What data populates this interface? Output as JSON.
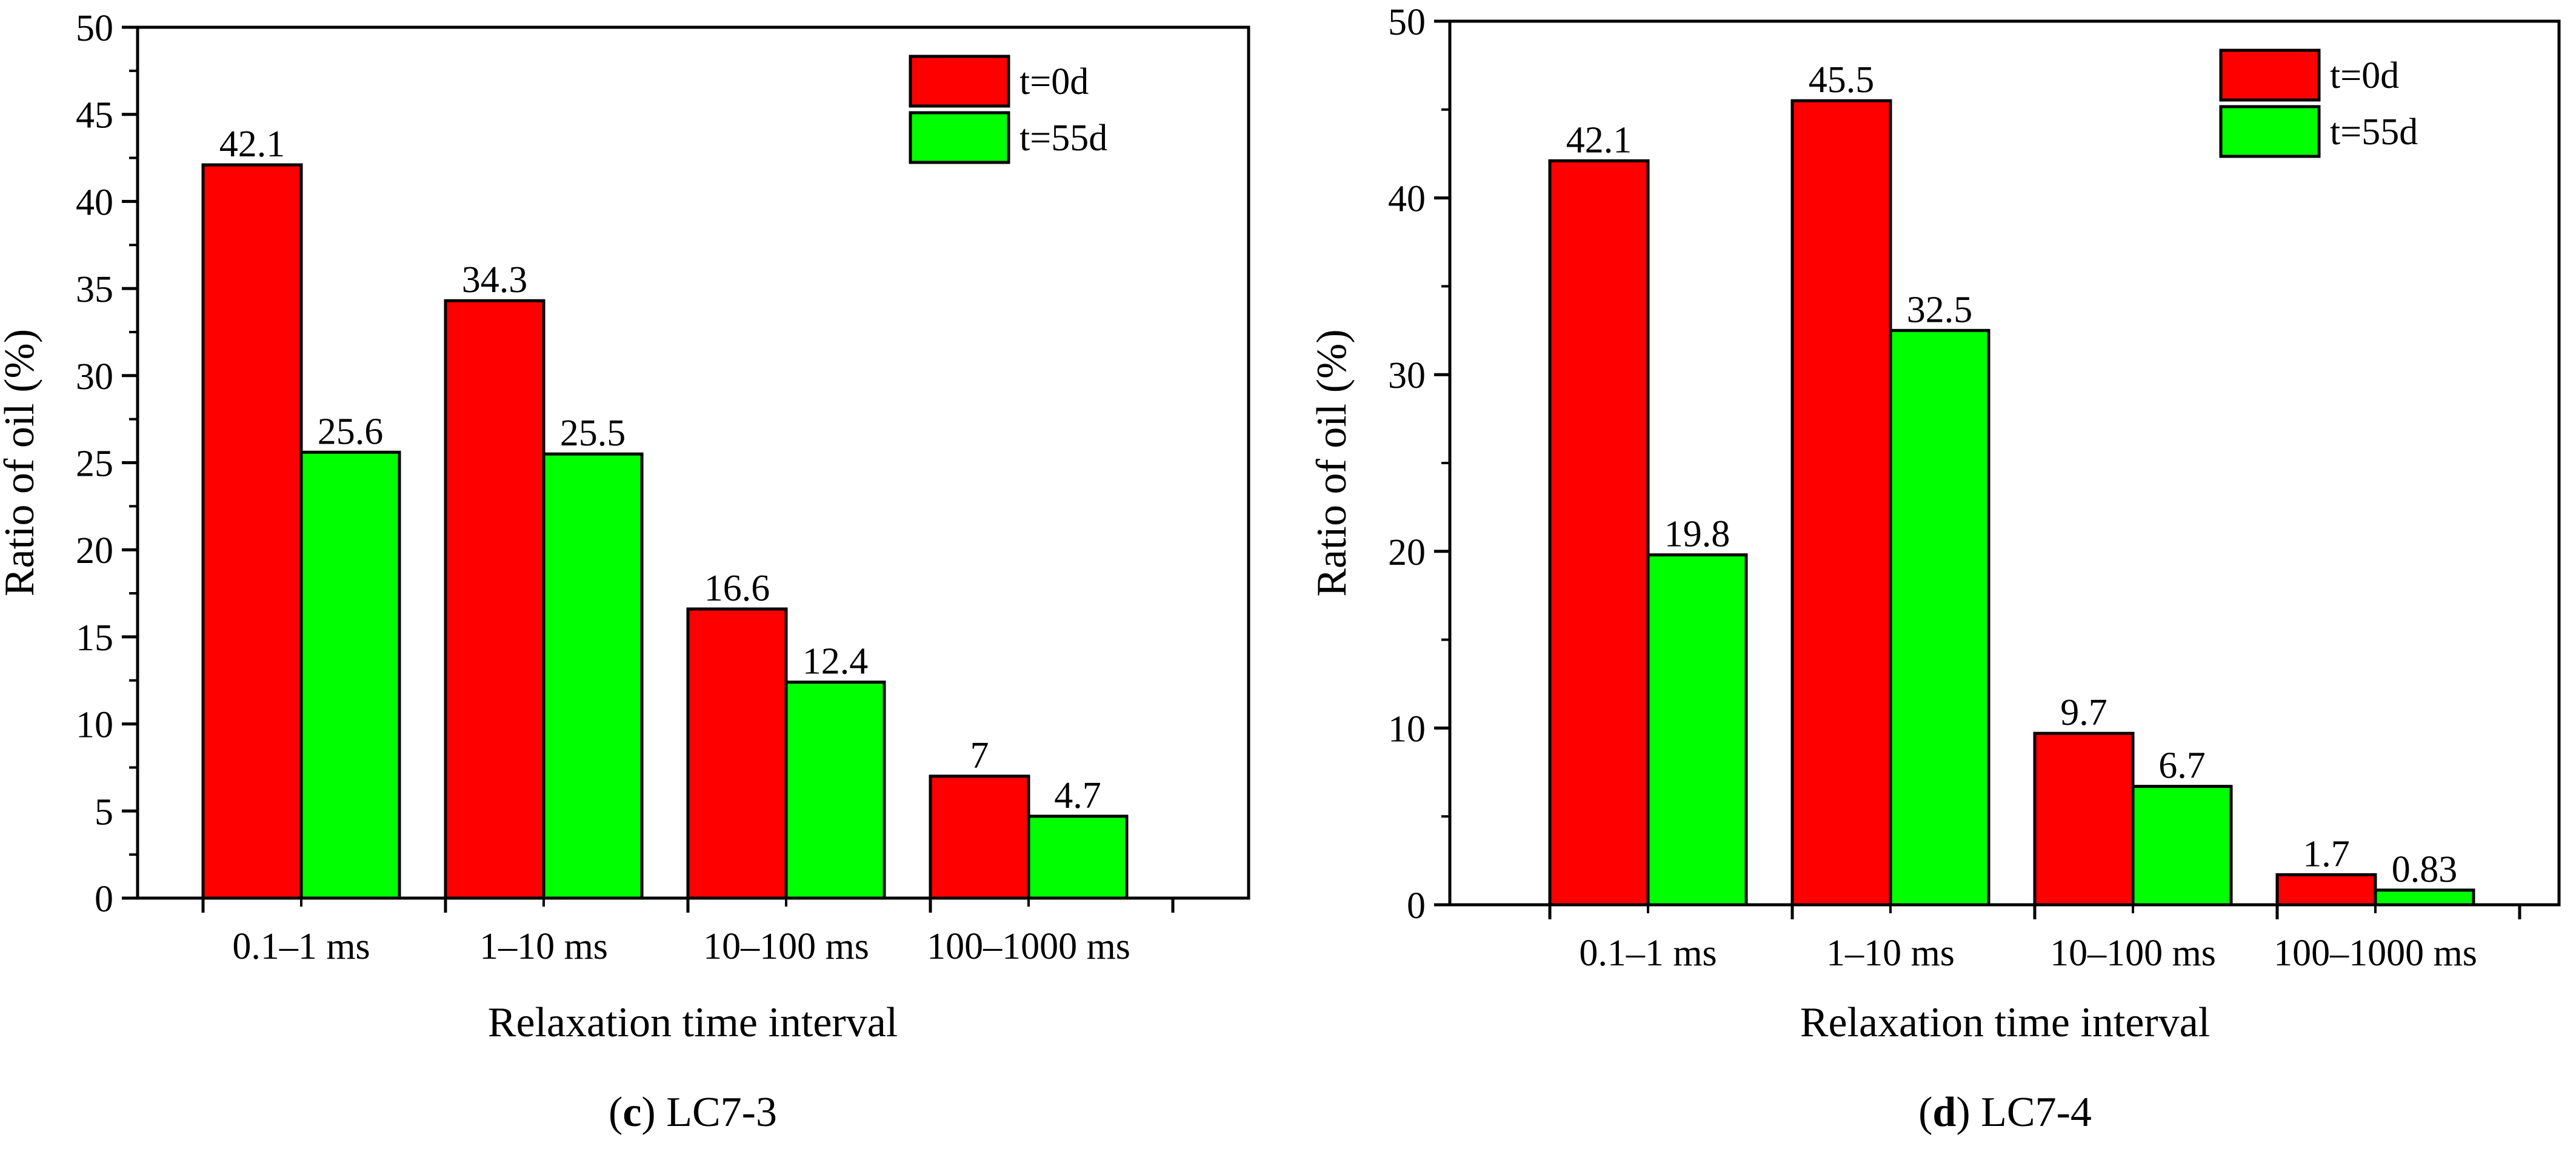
{
  "chart_data": [
    {
      "panel_letter": "c",
      "caption": "LC7-3",
      "type": "bar",
      "xlabel": "Relaxation time interval",
      "ylabel": "Ratio of oil (%)",
      "ylim": [
        0,
        50
      ],
      "yticks": [
        0,
        5,
        10,
        15,
        20,
        25,
        30,
        35,
        40,
        45,
        50
      ],
      "categories": [
        "0.1–1 ms",
        "1–10 ms",
        "10–100 ms",
        "100–1000 ms"
      ],
      "legend_position": "top-right",
      "series": [
        {
          "name": "t=0d",
          "color": "#ff0000",
          "values": [
            42.1,
            34.3,
            16.6,
            7
          ],
          "labels": [
            "42.1",
            "34.3",
            "16.6",
            "7"
          ]
        },
        {
          "name": "t=55d",
          "color": "#00ff00",
          "values": [
            25.6,
            25.5,
            12.4,
            4.7
          ],
          "labels": [
            "25.6",
            "25.5",
            "12.4",
            "4.7"
          ]
        }
      ]
    },
    {
      "panel_letter": "d",
      "caption": "LC7-4",
      "type": "bar",
      "xlabel": "Relaxation time interval",
      "ylabel": "Ratio of oil (%)",
      "ylim": [
        0,
        50
      ],
      "yticks": [
        0,
        10,
        20,
        30,
        40,
        50
      ],
      "categories": [
        "0.1–1 ms",
        "1–10 ms",
        "10–100 ms",
        "100–1000 ms"
      ],
      "legend_position": "top-right",
      "series": [
        {
          "name": "t=0d",
          "color": "#ff0000",
          "values": [
            42.1,
            45.5,
            9.7,
            1.7
          ],
          "labels": [
            "42.1",
            "45.5",
            "9.7",
            "1.7"
          ]
        },
        {
          "name": "t=55d",
          "color": "#00ff00",
          "values": [
            19.8,
            32.5,
            6.7,
            0.83
          ],
          "labels": [
            "19.8",
            "32.5",
            "6.7",
            "0.83"
          ]
        }
      ]
    }
  ]
}
